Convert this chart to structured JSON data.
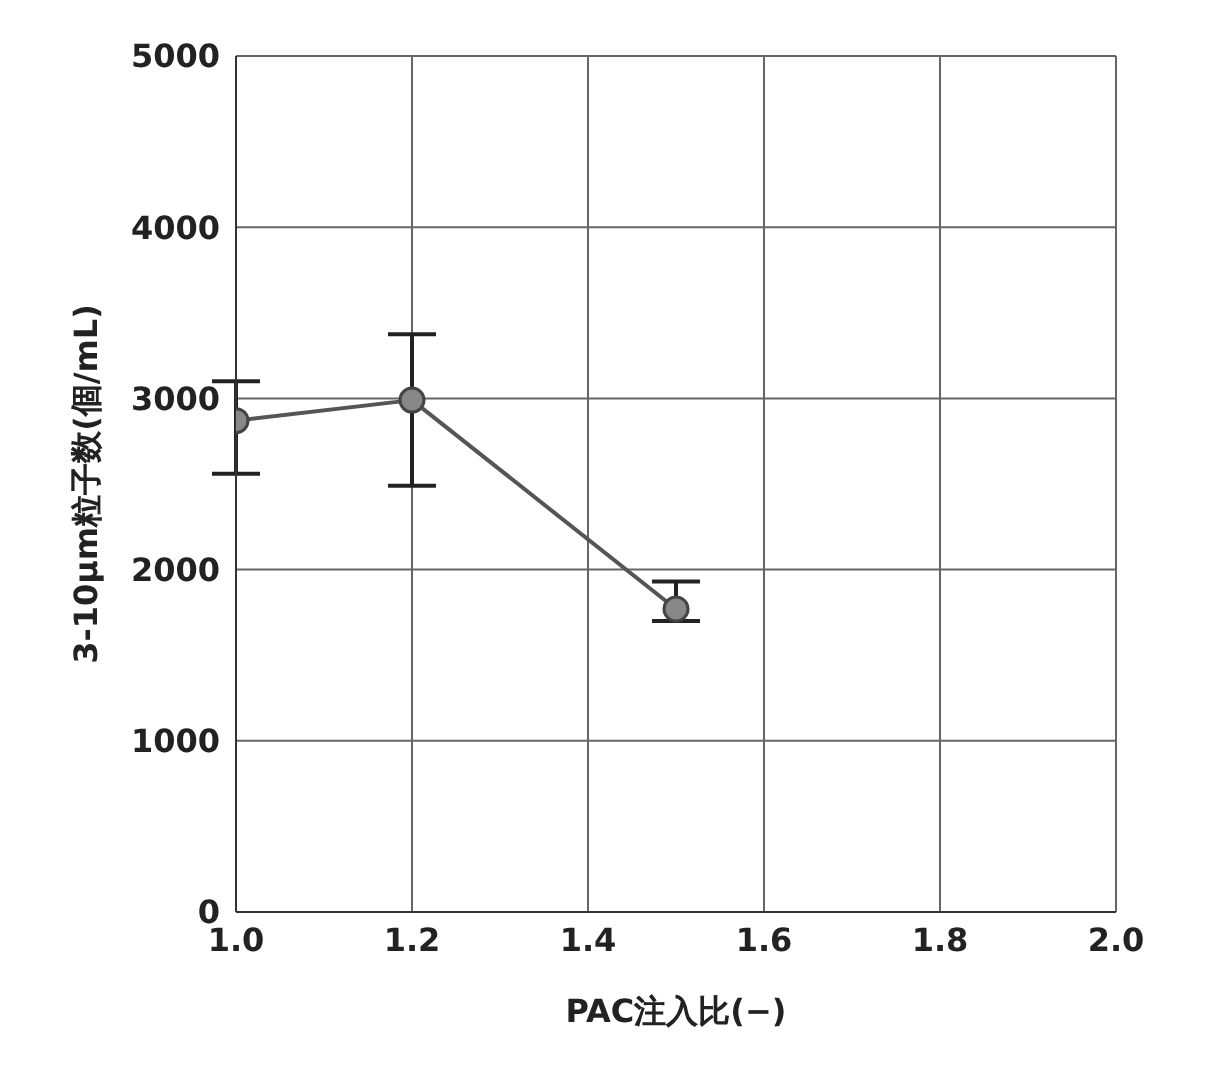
{
  "chart_data": {
    "type": "line",
    "xlabel": "PAC注入比(−)",
    "ylabel": "3-10μm粒子数(個/mL)",
    "x": [
      1.0,
      1.2,
      1.5
    ],
    "series": [
      {
        "color": "#555555",
        "values": [
          2870,
          2990,
          1770
        ],
        "errors": [
          [
            2560,
            3100
          ],
          [
            2490,
            3375
          ],
          [
            1700,
            1930
          ]
        ]
      }
    ],
    "xlim": [
      1.0,
      2.0
    ],
    "xticks": [
      {
        "value": 1.0,
        "label": "1.0"
      },
      1.2,
      1.4,
      1.6,
      1.8,
      {
        "value": 2.0,
        "label": "2.0"
      }
    ],
    "ylim": [
      0,
      5000
    ],
    "yticks": [
      0,
      1000,
      2000,
      3000,
      4000,
      5000
    ],
    "grid": true,
    "marker": "circle",
    "line_style": "solid",
    "legend": false
  }
}
